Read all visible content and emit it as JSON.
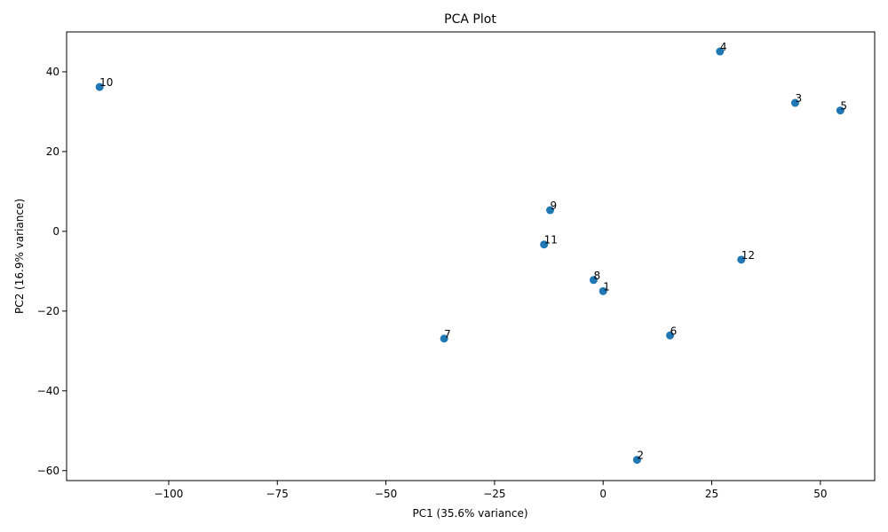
{
  "chart_data": {
    "type": "scatter",
    "title": "PCA Plot",
    "xlabel": "PC1 (35.6% variance)",
    "ylabel": "PC2 (16.9% variance)",
    "xlim": [
      -123.5,
      62.5
    ],
    "ylim": [
      -62.5,
      50.0
    ],
    "xticks": [
      -100,
      -75,
      -50,
      -25,
      0,
      25,
      50
    ],
    "yticks": [
      -60,
      -40,
      -20,
      0,
      20,
      40
    ],
    "xtick_labels": [
      "−100",
      "−75",
      "−50",
      "−25",
      "0",
      "25",
      "50"
    ],
    "ytick_labels": [
      "−60",
      "−40",
      "−20",
      "0",
      "20",
      "40"
    ],
    "grid": false,
    "legend": "none",
    "marker_color": "#1f77b4",
    "points": [
      {
        "label": "1",
        "x": 0.0,
        "y": -15.0
      },
      {
        "label": "2",
        "x": 7.8,
        "y": -57.3
      },
      {
        "label": "3",
        "x": 44.2,
        "y": 32.2
      },
      {
        "label": "4",
        "x": 26.9,
        "y": 45.1
      },
      {
        "label": "5",
        "x": 54.6,
        "y": 30.3
      },
      {
        "label": "6",
        "x": 15.4,
        "y": -26.1
      },
      {
        "label": "7",
        "x": -36.6,
        "y": -26.9
      },
      {
        "label": "8",
        "x": -2.2,
        "y": -12.2
      },
      {
        "label": "9",
        "x": -12.2,
        "y": 5.3
      },
      {
        "label": "10",
        "x": -115.9,
        "y": 36.2
      },
      {
        "label": "11",
        "x": -13.6,
        "y": -3.3
      },
      {
        "label": "12",
        "x": 31.8,
        "y": -7.1
      }
    ]
  }
}
